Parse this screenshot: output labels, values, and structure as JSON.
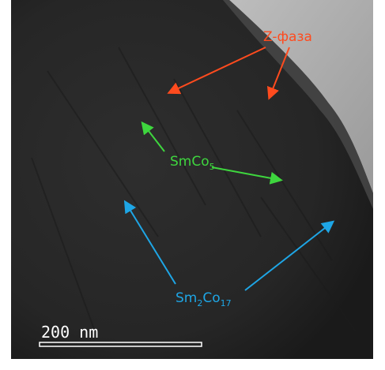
{
  "labels": {
    "z_phase": "Z-фаза",
    "smco5": {
      "base": "SmCo",
      "sub": "5"
    },
    "sm2co17": {
      "part1": "Sm",
      "sub1": "2",
      "part2": "Co",
      "sub2": "17"
    },
    "scale_bar": "200 nm"
  }
}
